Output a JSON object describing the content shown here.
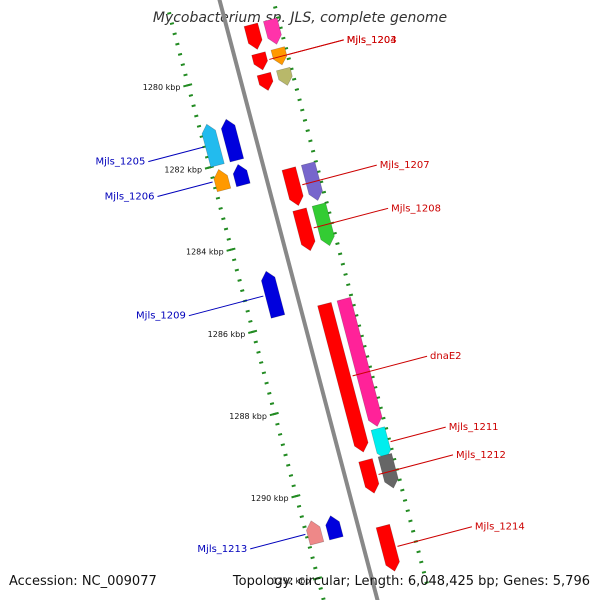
{
  "title": "Mycobacterium sp. JLS, complete genome",
  "accession_text": "Accession: NC_009077",
  "summary_text": "Topology: circular; Length: 6,048,425 bp; Genes: 5,796",
  "colors": {
    "backbone": "#888888",
    "tick": "#228B22",
    "forward_label": "#cc0000",
    "reverse_label": "#0000bb"
  },
  "kbp_ticks": [
    {
      "label": "1280 kbp",
      "kbp": 1280
    },
    {
      "label": "1282 kbp",
      "kbp": 1282
    },
    {
      "label": "1284 kbp",
      "kbp": 1284
    },
    {
      "label": "1286 kbp",
      "kbp": 1286
    },
    {
      "label": "1288 kbp",
      "kbp": 1288
    },
    {
      "label": "1290 kbp",
      "kbp": 1290
    },
    {
      "label": "1292 kbp",
      "kbp": 1292
    }
  ],
  "genes": [
    {
      "label": "",
      "strand": "+",
      "start_kbp": 1279.0,
      "end_kbp": 1279.6,
      "color": "#ff0000",
      "lane": 0
    },
    {
      "label": "",
      "strand": "+",
      "start_kbp": 1279.0,
      "end_kbp": 1279.6,
      "color": "#ff33aa",
      "lane": 1
    },
    {
      "label": "Mjls_1203",
      "strand": "+",
      "start_kbp": 1279.7,
      "end_kbp": 1280.1,
      "color": "#ff0000",
      "lane": 0
    },
    {
      "label": "Mjls_1204",
      "strand": "+",
      "start_kbp": 1279.7,
      "end_kbp": 1280.1,
      "color": "#ff9900",
      "lane": 1
    },
    {
      "label": "",
      "strand": "+",
      "start_kbp": 1280.2,
      "end_kbp": 1280.6,
      "color": "#ff0000",
      "lane": 0
    },
    {
      "label": "",
      "strand": "+",
      "start_kbp": 1280.2,
      "end_kbp": 1280.6,
      "color": "#b8b86a",
      "lane": 1
    },
    {
      "label": "Mjls_1205",
      "strand": "-",
      "start_kbp": 1281.0,
      "end_kbp": 1282.0,
      "color": "#22bbee",
      "lane": 1
    },
    {
      "label": "",
      "strand": "-",
      "start_kbp": 1281.0,
      "end_kbp": 1282.0,
      "color": "#0000dd",
      "lane": 0
    },
    {
      "label": "Mjls_1206",
      "strand": "-",
      "start_kbp": 1282.1,
      "end_kbp": 1282.6,
      "color": "#ff9900",
      "lane": 1
    },
    {
      "label": "",
      "strand": "-",
      "start_kbp": 1282.1,
      "end_kbp": 1282.6,
      "color": "#0000dd",
      "lane": 0
    },
    {
      "label": "Mjls_1207",
      "strand": "+",
      "start_kbp": 1282.5,
      "end_kbp": 1283.4,
      "color": "#ff0000",
      "lane": 0
    },
    {
      "label": "",
      "strand": "+",
      "start_kbp": 1282.5,
      "end_kbp": 1283.4,
      "color": "#7766cc",
      "lane": 1
    },
    {
      "label": "Mjls_1208",
      "strand": "+",
      "start_kbp": 1283.5,
      "end_kbp": 1284.5,
      "color": "#ff0000",
      "lane": 0
    },
    {
      "label": "",
      "strand": "+",
      "start_kbp": 1283.5,
      "end_kbp": 1284.5,
      "color": "#33cc33",
      "lane": 1
    },
    {
      "label": "Mjls_1209",
      "strand": "-",
      "start_kbp": 1284.7,
      "end_kbp": 1285.8,
      "color": "#0000dd",
      "lane": 0
    },
    {
      "label": "dnaE2",
      "strand": "+",
      "start_kbp": 1285.8,
      "end_kbp": 1289.4,
      "color": "#ff0000",
      "lane": 0
    },
    {
      "label": "",
      "strand": "+",
      "start_kbp": 1285.8,
      "end_kbp": 1288.9,
      "color": "#ff2299",
      "lane": 1
    },
    {
      "label": "Mjls_1211",
      "strand": "+",
      "start_kbp": 1288.95,
      "end_kbp": 1289.7,
      "color": "#00eeee",
      "lane": 1
    },
    {
      "label": "Mjls_1212",
      "strand": "+",
      "start_kbp": 1289.6,
      "end_kbp": 1290.4,
      "color": "#ff0000",
      "lane": 0
    },
    {
      "label": "",
      "strand": "+",
      "start_kbp": 1289.6,
      "end_kbp": 1290.4,
      "color": "#666666",
      "lane": 1
    },
    {
      "label": "Mjls_1213",
      "strand": "-",
      "start_kbp": 1290.65,
      "end_kbp": 1291.2,
      "color": "#ee8888",
      "lane": 1
    },
    {
      "label": "",
      "strand": "-",
      "start_kbp": 1290.65,
      "end_kbp": 1291.2,
      "color": "#0000dd",
      "lane": 0
    },
    {
      "label": "Mjls_1214",
      "strand": "+",
      "start_kbp": 1291.2,
      "end_kbp": 1292.3,
      "color": "#ff0000",
      "lane": 0
    }
  ]
}
